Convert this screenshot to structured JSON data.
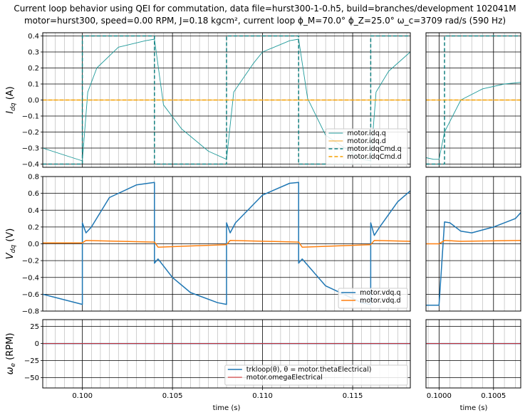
{
  "figure": {
    "title_line1": "Current loop behavior using QEI for commutation, data file=hurst300-1-0.h5, build=branches/development 102041M",
    "title_line2": "motor=hurst300, speed=0.00 RPM, J=0.18 kgcm², current loop ϕ_M=70.0° ϕ_Z=25.0° ω_c=3709 rad/s (590 Hz)",
    "xlabel": "time (s)"
  },
  "colors": {
    "iq": "#1f9a9a",
    "id": "#f2a11c",
    "iqCmd": "#138080",
    "idCmd": "#f5a000",
    "vq": "#1f77b4",
    "vd": "#ff7f0e",
    "trkloop": "#1f77b4",
    "omega": "#d62728",
    "grid_major": "#000000",
    "grid_minor": "#b0b0b0"
  },
  "chart_data": [
    {
      "id": "current",
      "type": "line",
      "title": "",
      "xlabel": "",
      "ylabel": "I_dq (A)",
      "xlim": [
        0.0978,
        0.1182
      ],
      "ylim": [
        -0.42,
        0.42
      ],
      "yticks": [
        "0.4",
        "0.3",
        "0.2",
        "0.1",
        "0.0",
        "−0.1",
        "−0.2",
        "−0.3",
        "−0.4"
      ],
      "grid": true,
      "legend_position": "lower-right",
      "series": [
        {
          "name": "motor.idq.q",
          "style": "solid-thin",
          "key": "iq",
          "values": [
            [
              0.0978,
              -0.3
            ],
            [
              0.1,
              -0.38
            ],
            [
              0.1003,
              0.05
            ],
            [
              0.1008,
              0.2
            ],
            [
              0.102,
              0.33
            ],
            [
              0.1035,
              0.37
            ],
            [
              0.104,
              0.38
            ],
            [
              0.1045,
              -0.03
            ],
            [
              0.1055,
              -0.18
            ],
            [
              0.107,
              -0.32
            ],
            [
              0.108,
              -0.37
            ],
            [
              0.1084,
              0.05
            ],
            [
              0.1095,
              0.23
            ],
            [
              0.11,
              0.3
            ],
            [
              0.1115,
              0.37
            ],
            [
              0.112,
              0.38
            ],
            [
              0.1125,
              0.01
            ],
            [
              0.1135,
              -0.22
            ],
            [
              0.1155,
              -0.37
            ],
            [
              0.116,
              -0.38
            ],
            [
              0.1163,
              0.05
            ],
            [
              0.117,
              0.18
            ],
            [
              0.1182,
              0.3
            ]
          ]
        },
        {
          "name": "motor.idq.d",
          "style": "solid-thin",
          "key": "id",
          "values": [
            [
              0.0978,
              0.0
            ],
            [
              0.1182,
              0.0
            ]
          ]
        },
        {
          "name": "motor.idqCmd.q",
          "style": "dashed",
          "key": "iqCmd",
          "values": [
            [
              0.0978,
              -0.4
            ],
            [
              0.1,
              -0.4
            ],
            [
              0.1,
              0.4
            ],
            [
              0.104,
              0.4
            ],
            [
              0.104,
              -0.4
            ],
            [
              0.108,
              -0.4
            ],
            [
              0.108,
              0.4
            ],
            [
              0.112,
              0.4
            ],
            [
              0.112,
              -0.4
            ],
            [
              0.116,
              -0.4
            ],
            [
              0.116,
              0.4
            ],
            [
              0.1182,
              0.4
            ]
          ]
        },
        {
          "name": "motor.idqCmd.d",
          "style": "dashed",
          "key": "idCmd",
          "values": [
            [
              0.0978,
              0.0
            ],
            [
              0.1182,
              0.0
            ]
          ]
        }
      ]
    },
    {
      "id": "current_zoom",
      "type": "line",
      "xlim": [
        0.09988,
        0.10075
      ],
      "ylim": [
        -0.42,
        0.42
      ],
      "series": [
        {
          "name": "motor.idq.q",
          "key": "iq",
          "values": [
            [
              0.09988,
              -0.36
            ],
            [
              0.09995,
              -0.37
            ],
            [
              0.1,
              -0.37
            ],
            [
              0.10005,
              -0.2
            ],
            [
              0.1002,
              0.0
            ],
            [
              0.1004,
              0.07
            ],
            [
              0.1006,
              0.1
            ],
            [
              0.10075,
              0.11
            ]
          ]
        },
        {
          "name": "motor.idq.d",
          "key": "id",
          "values": [
            [
              0.09988,
              0.0
            ],
            [
              0.10075,
              0.0
            ]
          ]
        },
        {
          "name": "motor.idqCmd.q",
          "key": "iqCmd",
          "values": [
            [
              0.09988,
              -0.4
            ],
            [
              0.10005,
              -0.4
            ],
            [
              0.10005,
              0.4
            ],
            [
              0.10075,
              0.4
            ]
          ]
        },
        {
          "name": "motor.idqCmd.d",
          "key": "idCmd",
          "values": [
            [
              0.09988,
              0.0
            ],
            [
              0.10075,
              0.0
            ]
          ]
        }
      ]
    },
    {
      "id": "voltage",
      "type": "line",
      "ylabel": "V_dq (V)",
      "xlim": [
        0.0978,
        0.1182
      ],
      "ylim": [
        -0.8,
        0.8
      ],
      "yticks": [
        "0.8",
        "0.6",
        "0.4",
        "0.2",
        "0.0",
        "−0.2",
        "−0.4",
        "−0.6",
        "−0.8"
      ],
      "grid": true,
      "legend_position": "lower-right",
      "series": [
        {
          "name": "motor.vdq.q",
          "key": "vq",
          "values": [
            [
              0.0978,
              -0.6
            ],
            [
              0.1,
              -0.72
            ],
            [
              0.1,
              0.25
            ],
            [
              0.1002,
              0.13
            ],
            [
              0.1005,
              0.2
            ],
            [
              0.1015,
              0.55
            ],
            [
              0.103,
              0.7
            ],
            [
              0.104,
              0.73
            ],
            [
              0.104,
              -0.23
            ],
            [
              0.1042,
              -0.18
            ],
            [
              0.105,
              -0.4
            ],
            [
              0.106,
              -0.58
            ],
            [
              0.1075,
              -0.7
            ],
            [
              0.108,
              -0.72
            ],
            [
              0.108,
              0.25
            ],
            [
              0.1082,
              0.13
            ],
            [
              0.1085,
              0.25
            ],
            [
              0.11,
              0.58
            ],
            [
              0.1115,
              0.72
            ],
            [
              0.112,
              0.73
            ],
            [
              0.112,
              -0.23
            ],
            [
              0.1122,
              -0.18
            ],
            [
              0.1135,
              -0.5
            ],
            [
              0.1155,
              -0.7
            ],
            [
              0.116,
              -0.72
            ],
            [
              0.116,
              0.25
            ],
            [
              0.1162,
              0.1
            ],
            [
              0.1165,
              0.2
            ],
            [
              0.1175,
              0.5
            ],
            [
              0.1182,
              0.63
            ]
          ]
        },
        {
          "name": "motor.vdq.d",
          "key": "vd",
          "values": [
            [
              0.0978,
              0.01
            ],
            [
              0.1,
              0.01
            ],
            [
              0.1002,
              0.04
            ],
            [
              0.104,
              0.02
            ],
            [
              0.1042,
              -0.04
            ],
            [
              0.108,
              -0.01
            ],
            [
              0.1082,
              0.04
            ],
            [
              0.112,
              0.02
            ],
            [
              0.1122,
              -0.04
            ],
            [
              0.116,
              -0.01
            ],
            [
              0.1162,
              0.04
            ],
            [
              0.1182,
              0.03
            ]
          ]
        }
      ]
    },
    {
      "id": "voltage_zoom",
      "type": "line",
      "xlim": [
        0.09988,
        0.10075
      ],
      "ylim": [
        -0.8,
        0.8
      ],
      "series": [
        {
          "name": "motor.vdq.q",
          "key": "vq",
          "values": [
            [
              0.09988,
              -0.73
            ],
            [
              0.1,
              -0.73
            ],
            [
              0.10005,
              0.26
            ],
            [
              0.1001,
              0.25
            ],
            [
              0.1002,
              0.15
            ],
            [
              0.1003,
              0.13
            ],
            [
              0.1005,
              0.2
            ],
            [
              0.1007,
              0.3
            ],
            [
              0.10075,
              0.37
            ]
          ]
        },
        {
          "name": "motor.vdq.d",
          "key": "vd",
          "values": [
            [
              0.09988,
              0.0
            ],
            [
              0.1,
              0.0
            ],
            [
              0.10005,
              0.04
            ],
            [
              0.1002,
              0.03
            ],
            [
              0.10075,
              0.04
            ]
          ]
        }
      ]
    },
    {
      "id": "speed",
      "type": "line",
      "ylabel": "ω_e (RPM)",
      "xlim": [
        0.0978,
        0.1182
      ],
      "ylim": [
        -65,
        35
      ],
      "yticks": [
        "25",
        "0",
        "−25",
        "−50"
      ],
      "xticks": [
        "0.100",
        "0.105",
        "0.110",
        "0.115"
      ],
      "grid": true,
      "legend_position": "lower-right",
      "series": [
        {
          "name": "trkloop(θ), θ = motor.thetaElectrical)",
          "key": "trkloop",
          "values": [
            [
              0.0978,
              0
            ],
            [
              0.1182,
              0
            ]
          ]
        },
        {
          "name": "motor.omegaElectrical",
          "key": "omega",
          "values": [
            [
              0.0978,
              0
            ],
            [
              0.1182,
              0
            ]
          ]
        }
      ]
    },
    {
      "id": "speed_zoom",
      "type": "line",
      "xlim": [
        0.09988,
        0.10075
      ],
      "ylim": [
        -65,
        35
      ],
      "xticks": [
        "0.1000",
        "0.1005"
      ],
      "series": [
        {
          "name": "trkloop",
          "key": "trkloop",
          "values": [
            [
              0.09988,
              0
            ],
            [
              0.10075,
              0
            ]
          ]
        },
        {
          "name": "motor.omegaElectrical",
          "key": "omega",
          "values": [
            [
              0.09988,
              0
            ],
            [
              0.10075,
              0
            ]
          ]
        }
      ]
    }
  ]
}
